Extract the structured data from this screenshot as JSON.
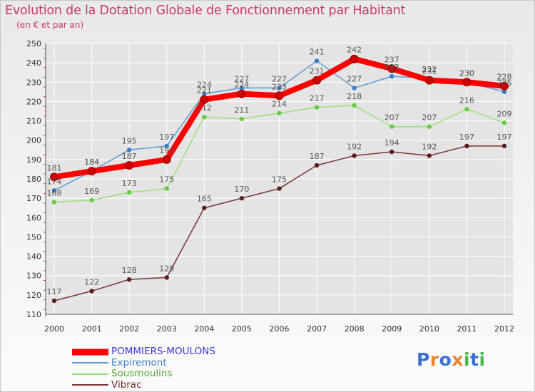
{
  "title": "Evolution de la Dotation Globale de Fonctionnement par Habitant",
  "subtitle": "(en € et par an)",
  "logo_text": "Proxiti",
  "colors": {
    "title": "#c9386e",
    "grid": "#ffffff",
    "axis": "#555555",
    "tick_text": "#333333",
    "value_text": "#555555"
  },
  "chart_data": {
    "type": "line",
    "title": "Evolution de la Dotation Globale de Fonctionnement par Habitant",
    "subtitle": "(en € et par an)",
    "x": [
      "2000",
      "2001",
      "2002",
      "2003",
      "2004",
      "2005",
      "2006",
      "2007",
      "2008",
      "2009",
      "2010",
      "2011",
      "2012"
    ],
    "ylim": [
      110,
      250
    ],
    "yticks": [
      110,
      120,
      130,
      140,
      150,
      160,
      170,
      180,
      190,
      200,
      210,
      220,
      230,
      240,
      250
    ],
    "grid": true,
    "legend_position": "bottom-left",
    "series": [
      {
        "name": "POMMIERS-MOULONS",
        "color": "#ff0000",
        "marker": "#cc0000",
        "width": "thick",
        "values": [
          181,
          184,
          187,
          190,
          221,
          224,
          223,
          231,
          242,
          237,
          231,
          230,
          228
        ]
      },
      {
        "name": "Expiremont",
        "color": "#5b9bd5",
        "marker": "#3a7fc4",
        "width": "thin",
        "values": [
          174,
          184,
          195,
          197,
          224,
          227,
          227,
          241,
          227,
          233,
          232,
          230,
          225
        ]
      },
      {
        "name": "Sousmoulins",
        "color": "#99e07a",
        "marker": "#66cc44",
        "width": "thin",
        "values": [
          168,
          169,
          173,
          175,
          212,
          211,
          214,
          217,
          218,
          207,
          207,
          216,
          209
        ]
      },
      {
        "name": "Vibrac",
        "color": "#7a3333",
        "marker": "#5c1f1f",
        "width": "thin",
        "values": [
          117,
          122,
          128,
          129,
          165,
          170,
          175,
          187,
          192,
          194,
          192,
          197,
          197
        ]
      }
    ]
  }
}
